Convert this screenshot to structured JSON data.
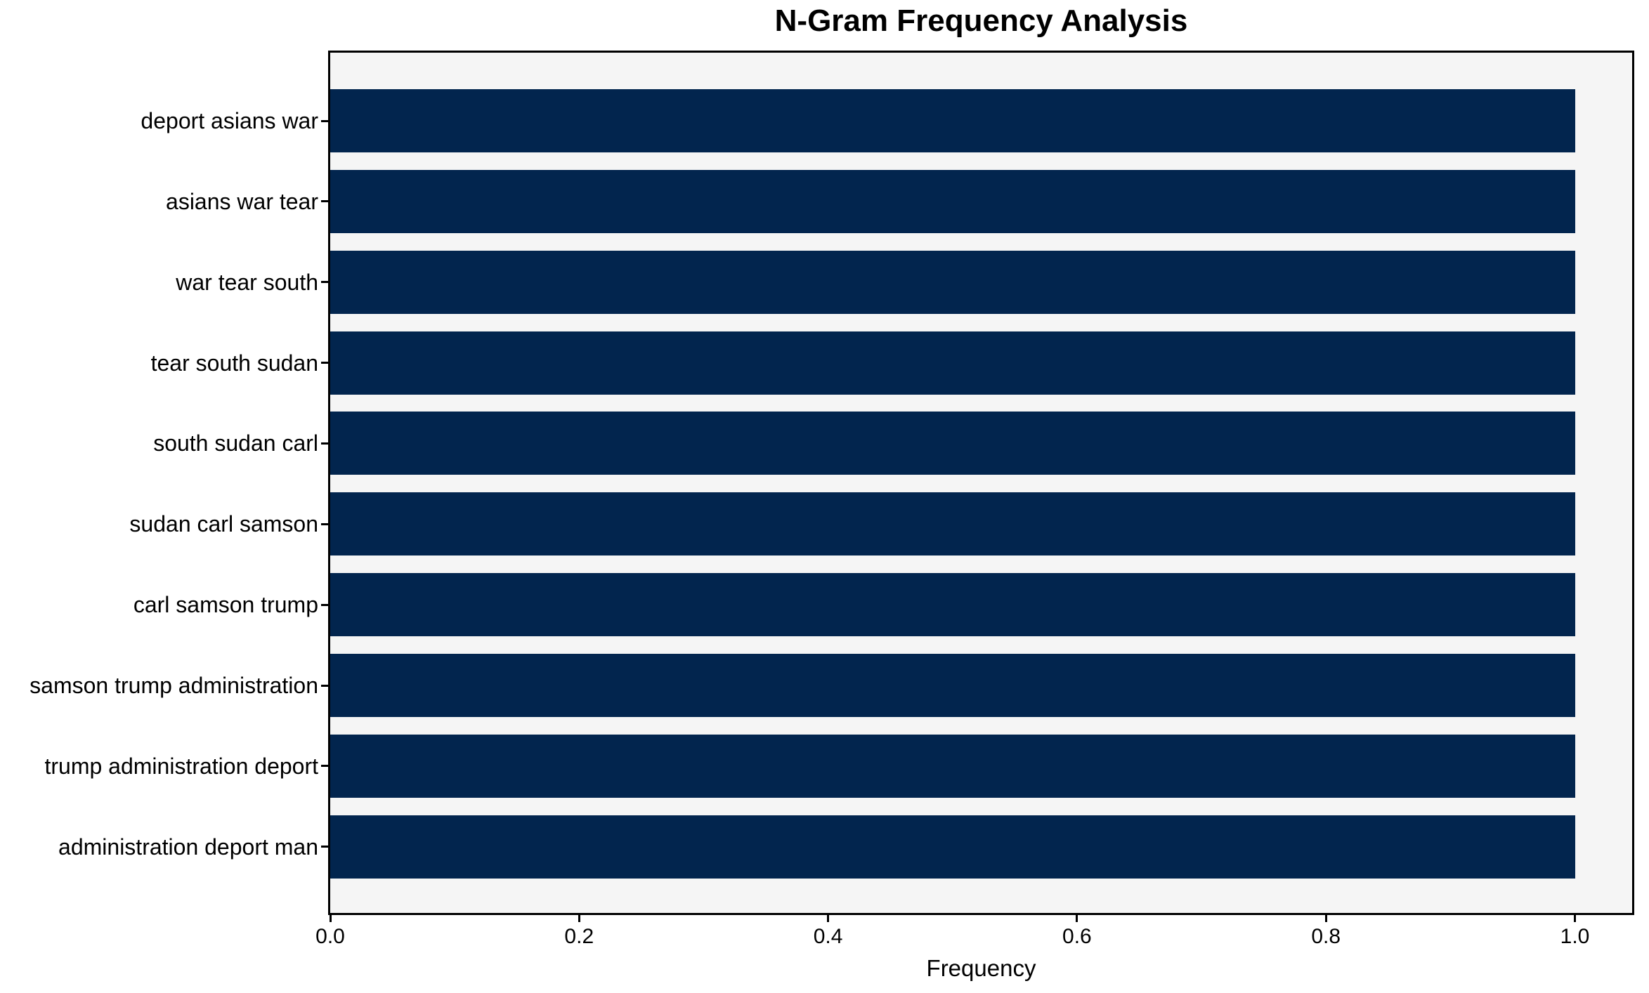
{
  "chart_data": {
    "type": "bar",
    "orientation": "horizontal",
    "title": "N-Gram Frequency Analysis",
    "xlabel": "Frequency",
    "categories": [
      "deport asians war",
      "asians war tear",
      "war tear south",
      "tear south sudan",
      "south sudan carl",
      "sudan carl samson",
      "carl samson trump",
      "samson trump administration",
      "trump administration deport",
      "administration deport man"
    ],
    "values": [
      1.0,
      1.0,
      1.0,
      1.0,
      1.0,
      1.0,
      1.0,
      1.0,
      1.0,
      1.0
    ],
    "xticks": [
      {
        "value": 0.0,
        "label": "0.0"
      },
      {
        "value": 0.2,
        "label": "0.2"
      },
      {
        "value": 0.4,
        "label": "0.4"
      },
      {
        "value": 0.6,
        "label": "0.6"
      },
      {
        "value": 0.8,
        "label": "0.8"
      },
      {
        "value": 1.0,
        "label": "1.0"
      }
    ],
    "xlim": [
      0,
      1.046
    ],
    "grid": false,
    "legend": false,
    "colors": {
      "bar": "#02254e",
      "plot_background": "#f5f5f5",
      "figure_background": "#ffffff",
      "spine": "#000000",
      "text": "#000000"
    }
  }
}
